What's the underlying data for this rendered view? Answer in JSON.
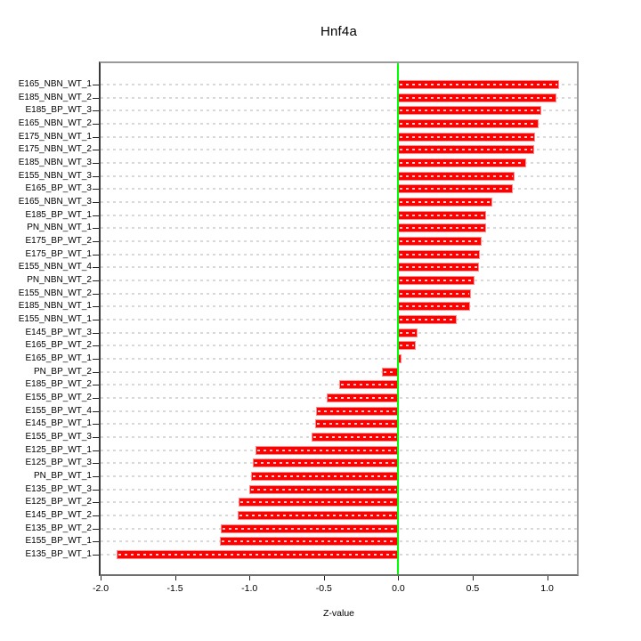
{
  "chart_data": {
    "type": "bar",
    "orientation": "horizontal",
    "title": "Hnf4a",
    "xlabel": "Z-value",
    "ylabel": "",
    "xlim": [
      -2.0,
      1.2
    ],
    "x_ticks": [
      -2.0,
      -1.5,
      -1.0,
      -0.5,
      0.0,
      0.5,
      1.0
    ],
    "x_tick_labels": [
      "-2.0",
      "-1.5",
      "-1.0",
      "-0.5",
      "0.0",
      "0.5",
      "1.0"
    ],
    "grid": "dashed horizontal per category",
    "legend": "none",
    "categories": [
      "E165_NBN_WT_1",
      "E185_NBN_WT_2",
      "E185_BP_WT_3",
      "E165_NBN_WT_2",
      "E175_NBN_WT_1",
      "E175_NBN_WT_2",
      "E185_NBN_WT_3",
      "E155_NBN_WT_3",
      "E165_BP_WT_3",
      "E165_NBN_WT_3",
      "E185_BP_WT_1",
      "PN_NBN_WT_1",
      "E175_BP_WT_2",
      "E175_BP_WT_1",
      "E155_NBN_WT_4",
      "PN_NBN_WT_2",
      "E155_NBN_WT_2",
      "E185_NBN_WT_1",
      "E155_NBN_WT_1",
      "E145_BP_WT_3",
      "E165_BP_WT_2",
      "E165_BP_WT_1",
      "PN_BP_WT_2",
      "E185_BP_WT_2",
      "E155_BP_WT_2",
      "E155_BP_WT_4",
      "E145_BP_WT_1",
      "E155_BP_WT_3",
      "E125_BP_WT_1",
      "E125_BP_WT_3",
      "PN_BP_WT_1",
      "E135_BP_WT_3",
      "E125_BP_WT_2",
      "E145_BP_WT_2",
      "E135_BP_WT_2",
      "E155_BP_WT_1",
      "E135_BP_WT_1"
    ],
    "values": [
      1.08,
      1.06,
      0.96,
      0.94,
      0.92,
      0.91,
      0.86,
      0.78,
      0.77,
      0.63,
      0.59,
      0.59,
      0.56,
      0.55,
      0.54,
      0.51,
      0.49,
      0.48,
      0.39,
      0.13,
      0.12,
      0.02,
      -0.11,
      -0.4,
      -0.48,
      -0.55,
      -0.56,
      -0.58,
      -0.96,
      -0.98,
      -0.99,
      -1.0,
      -1.07,
      -1.08,
      -1.19,
      -1.2,
      -1.89
    ],
    "colors": {
      "bar_fill": "#ff0000",
      "bar_border": "#ff8c8c",
      "bar_inner_dash": "#ffffff",
      "zero_line": "#00ff00",
      "gridline": "#d9d9d9",
      "frame": "#9a9a9a",
      "text": "#000000"
    }
  }
}
